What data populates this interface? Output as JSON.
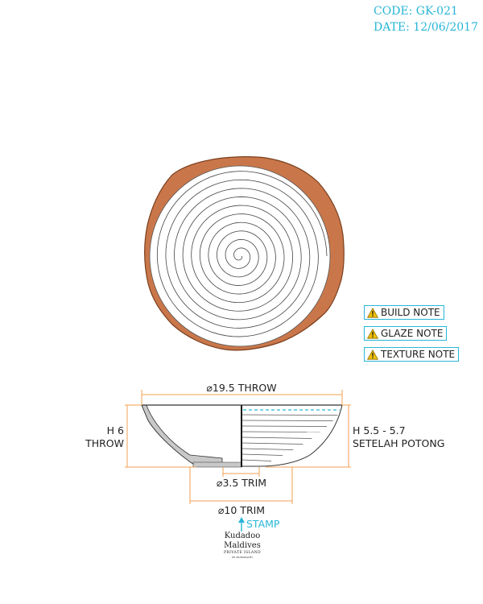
{
  "header": {
    "code": "CODE: GK-021",
    "date": "DATE: 12/06/2017"
  },
  "notes": [
    {
      "label": "BUILD NOTE",
      "icon": "warning-icon"
    },
    {
      "label": "GLAZE NOTE",
      "icon": "warning-icon"
    },
    {
      "label": "TEXTURE NOTE",
      "icon": "warning-icon"
    }
  ],
  "dimensions": {
    "diameter_throw": "⌀19.5 THROW",
    "height_throw_value": "H 6",
    "height_throw_label": "THROW",
    "height_cut_value": "H 5.5 - 5.7",
    "height_cut_label": "SETELAH POTONG",
    "foot_trim": "⌀3.5 TRIM",
    "base_trim": "⌀10 TRIM"
  },
  "stamp": {
    "label": "STAMP"
  },
  "logo": {
    "brand": "Kudadoo Maldives",
    "sub": "PRIVATE ISLAND",
    "tiny": "BY HURAWALHI"
  },
  "colors": {
    "header_text": "#29b6d8",
    "dimension_line": "#f0a050",
    "clay_rim": "#c9774a",
    "clay_rim_edge": "#7a3f1e",
    "glaze_line": "#29b6d8",
    "bowl_wall": "#c8c8c8",
    "note_border": "#29b6d8",
    "warning_fill": "#f2c200",
    "stamp_arrow": "#29b6d8"
  }
}
